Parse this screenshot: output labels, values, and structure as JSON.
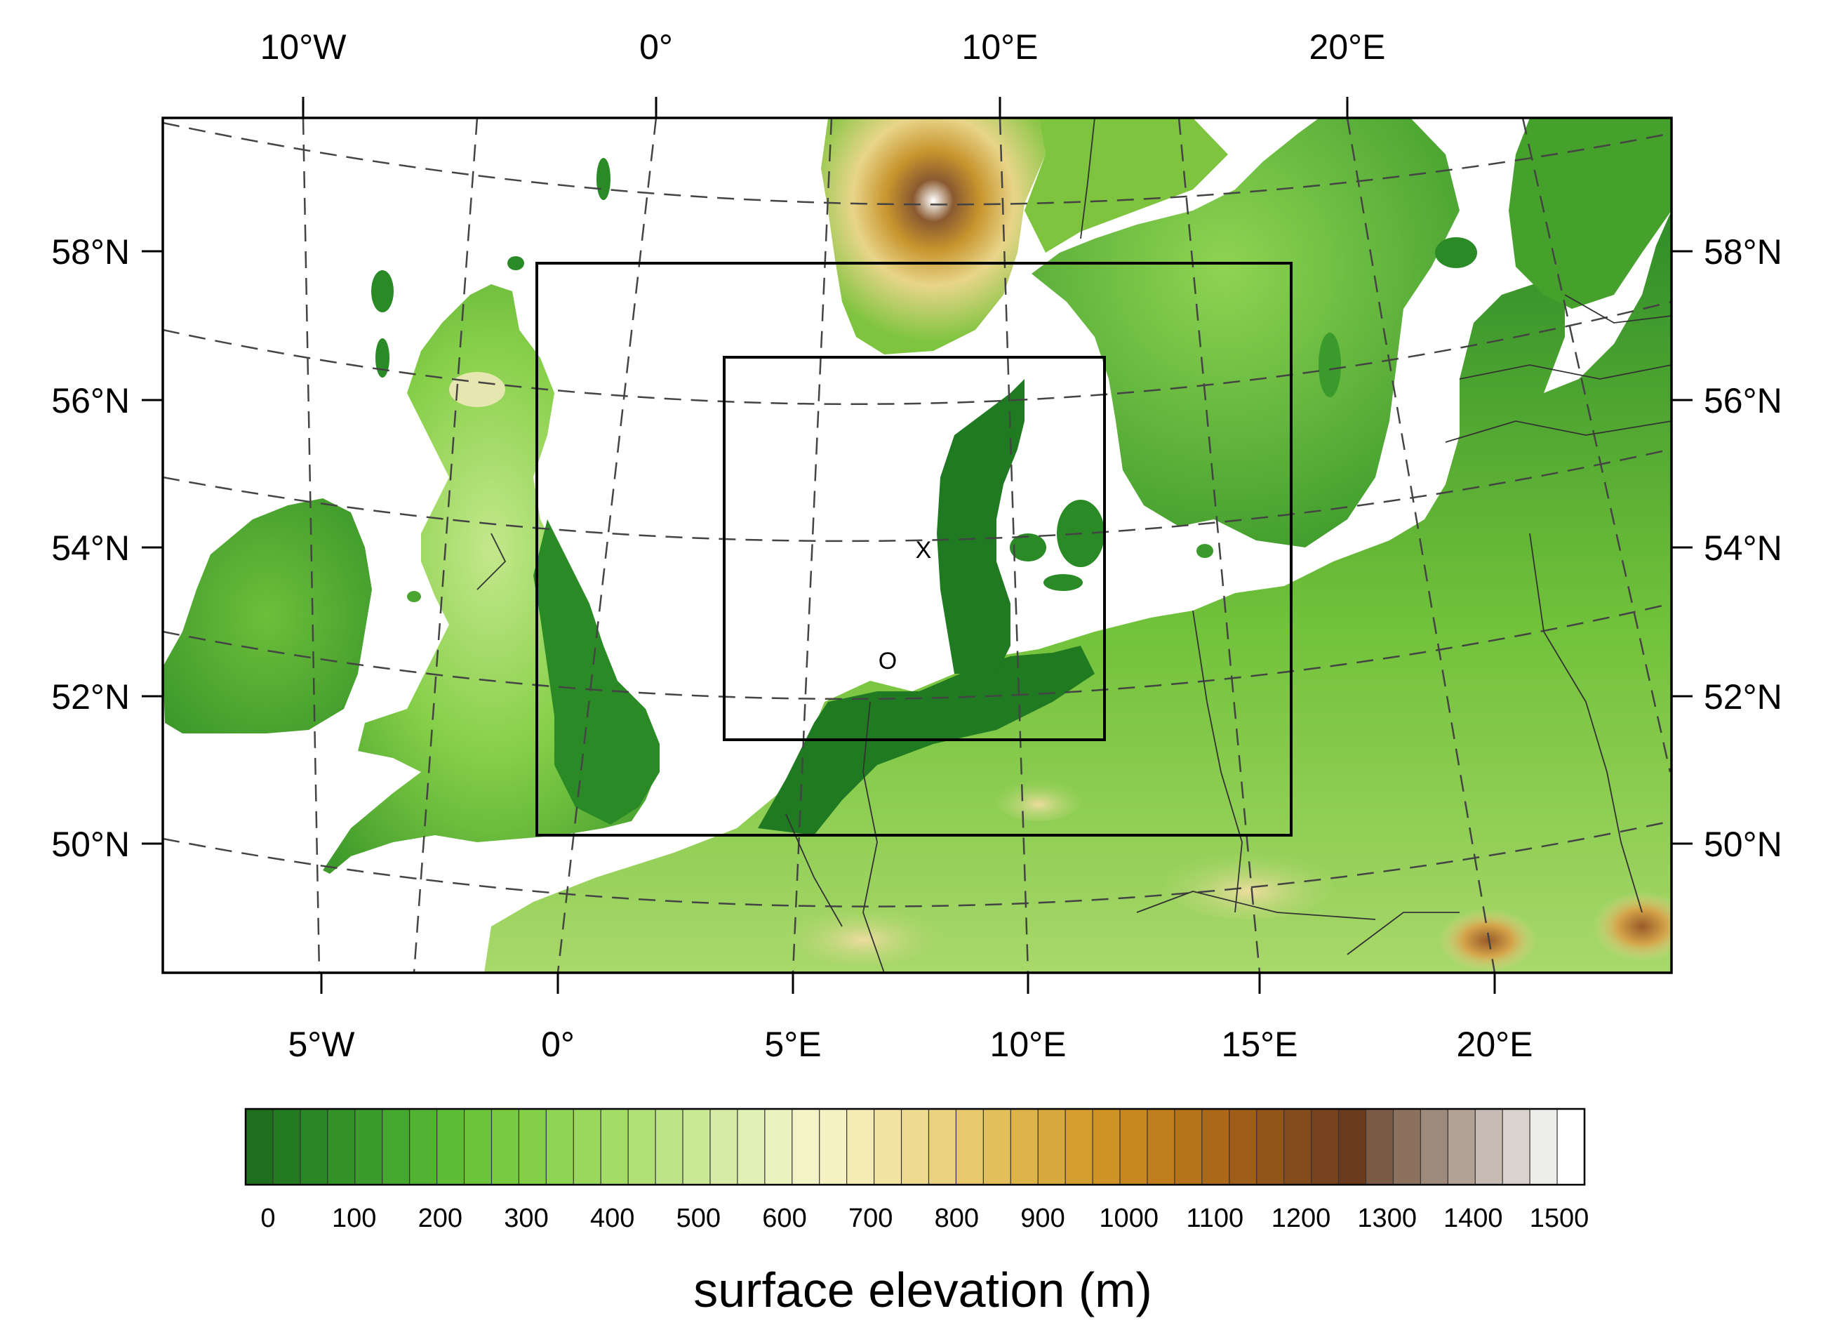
{
  "map": {
    "top_lon_labels": [
      "10°W",
      "0°",
      "10°E",
      "20°E"
    ],
    "bottom_lon_labels": [
      "5°W",
      "0°",
      "5°E",
      "10°E",
      "15°E",
      "20°E"
    ],
    "lat_labels": [
      "58°N",
      "56°N",
      "54°N",
      "52°N",
      "50°N"
    ],
    "markers": {
      "x": "X",
      "o": "O"
    },
    "domains": [
      "outer-domain",
      "inner-domain"
    ]
  },
  "colorbar": {
    "title": "surface elevation (m)",
    "tick_labels": [
      "0",
      "100",
      "200",
      "300",
      "400",
      "500",
      "600",
      "700",
      "800",
      "900",
      "1000",
      "1100",
      "1200",
      "1300",
      "1400",
      "1500"
    ],
    "colors": [
      "#1e6e1e",
      "#237a20",
      "#2a8624",
      "#329228",
      "#3a9c2a",
      "#45a82e",
      "#52b232",
      "#5fbc36",
      "#6cc43a",
      "#78ca40",
      "#84cf48",
      "#8fd452",
      "#99d85c",
      "#a4dc68",
      "#b0e076",
      "#bde486",
      "#cae896",
      "#d6eca6",
      "#e1f0b4",
      "#eaf2bf",
      "#f2f4c8",
      "#f6f1c2",
      "#f5ebb4",
      "#f2e3a2",
      "#eedb90",
      "#eaD27e",
      "#e6c96c",
      "#e2bf5a",
      "#ddb44a",
      "#d8a93c",
      "#d49e30",
      "#cf9326",
      "#c8881f",
      "#bf7d1b",
      "#b57219",
      "#aa6818",
      "#9e5e18",
      "#915419",
      "#844b1b",
      "#77421d",
      "#6a3a1f",
      "#7a5a44",
      "#8c725e",
      "#9e8a7a",
      "#b2a296",
      "#c6bab2",
      "#dad2cc",
      "#ededea",
      "#ffffff"
    ]
  },
  "colors": {
    "land_low": "#2a8a2a",
    "land_mid": "#7cc83e",
    "land_high": "#e8d88a",
    "mountain": "#a8692a",
    "sea": "#ffffff"
  }
}
